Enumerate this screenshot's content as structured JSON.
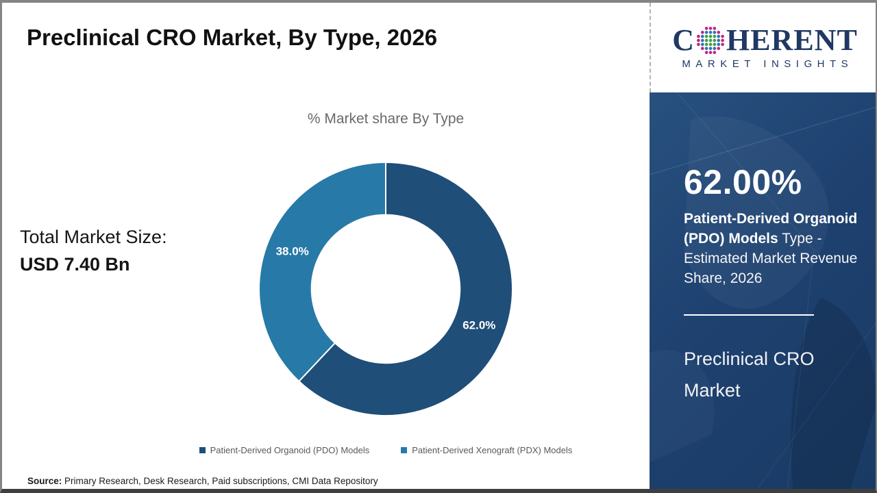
{
  "page": {
    "title": "Preclinical CRO Market, By Type, 2026",
    "source_label": "Source:",
    "source_text": " Primary Research, Desk Research, Paid subscriptions, CMI Data Repository"
  },
  "logo": {
    "brand_prefix": "C",
    "brand_suffix": "HERENT",
    "brand_subtitle": "MARKET INSIGHTS",
    "globe_icon": "dotted-globe",
    "brand_color": "#1F3864",
    "globe_dot_colors": {
      "inner": "#43A047",
      "middle": "#2E74B5",
      "outer": "#C2267E"
    }
  },
  "totals": {
    "label": "Total Market Size:",
    "value": "USD 7.40 Bn"
  },
  "chart_data": {
    "type": "pie",
    "donut": true,
    "title": "% Market share By Type",
    "categories": [
      "Patient-Derived Organoid (PDO) Models",
      "Patient-Derived Xenograft (PDX) Models"
    ],
    "values": [
      62.0,
      38.0
    ],
    "data_labels": [
      "62.0%",
      "38.0%"
    ],
    "colors": [
      "#1F4E79",
      "#2779A7"
    ],
    "start_angle_deg": 0,
    "direction": "clockwise",
    "inner_radius_ratio": 0.585,
    "slice_border_color": "#ffffff",
    "legend_position": "bottom"
  },
  "sidebar": {
    "highlight_value": "62.00%",
    "highlight_bold": "Patient-Derived Organoid (PDO) Models",
    "highlight_rest": " Type - Estimated Market Revenue Share, 2026",
    "market_name": "Preclinical CRO Market",
    "bg_color": "#1E4170"
  }
}
